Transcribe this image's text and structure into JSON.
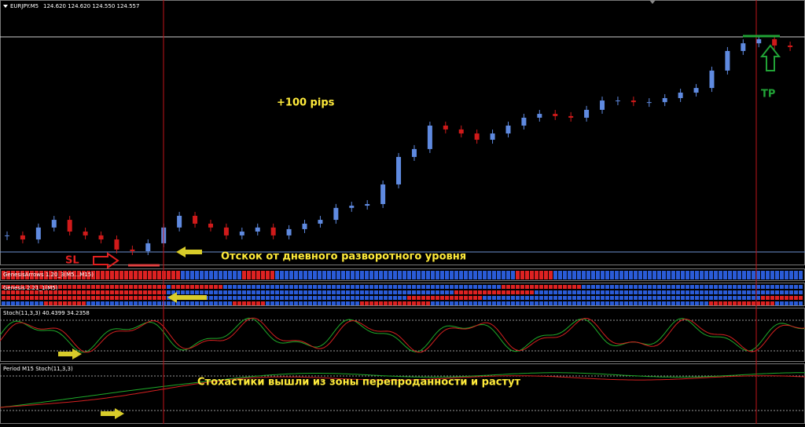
{
  "header": {
    "symbol": "EURJPY.M5",
    "quote": "124.620 124.620 124.550 124.557"
  },
  "chart_data": {
    "type": "candlestick",
    "values": [
      123.626,
      123.606,
      123.665,
      123.703,
      123.645,
      123.626,
      123.606,
      123.556,
      123.548,
      123.587,
      123.665,
      123.723,
      123.684,
      123.665,
      123.626,
      123.645,
      123.665,
      123.626,
      123.657,
      123.684,
      123.703,
      123.762,
      123.773,
      123.781,
      123.878,
      124.014,
      124.053,
      124.169,
      124.15,
      124.13,
      124.099,
      124.13,
      124.169,
      124.208,
      124.227,
      124.216,
      124.208,
      124.247,
      124.293,
      124.293,
      124.285,
      124.285,
      124.305,
      124.332,
      124.355,
      124.441,
      124.538,
      124.576,
      124.596,
      124.565,
      124.557
    ]
  },
  "annotations": {
    "pips": "+100 pips",
    "tp": "TP",
    "sl": "SL",
    "bounce": "Отскок от дневного разворотного уровня",
    "stoch_note": "Стохастики вышли из зоны перепроданности и растут"
  },
  "panels": {
    "arrows": "GenesisArrows 1.20_3(M5...M15)",
    "genesis": "Genesis 2.21_1(M5)",
    "stoch": "Stoch(11,3,3) 40.4399 34.2358",
    "stoch_m15": "Period M15 Stoch(11,3,3)"
  }
}
